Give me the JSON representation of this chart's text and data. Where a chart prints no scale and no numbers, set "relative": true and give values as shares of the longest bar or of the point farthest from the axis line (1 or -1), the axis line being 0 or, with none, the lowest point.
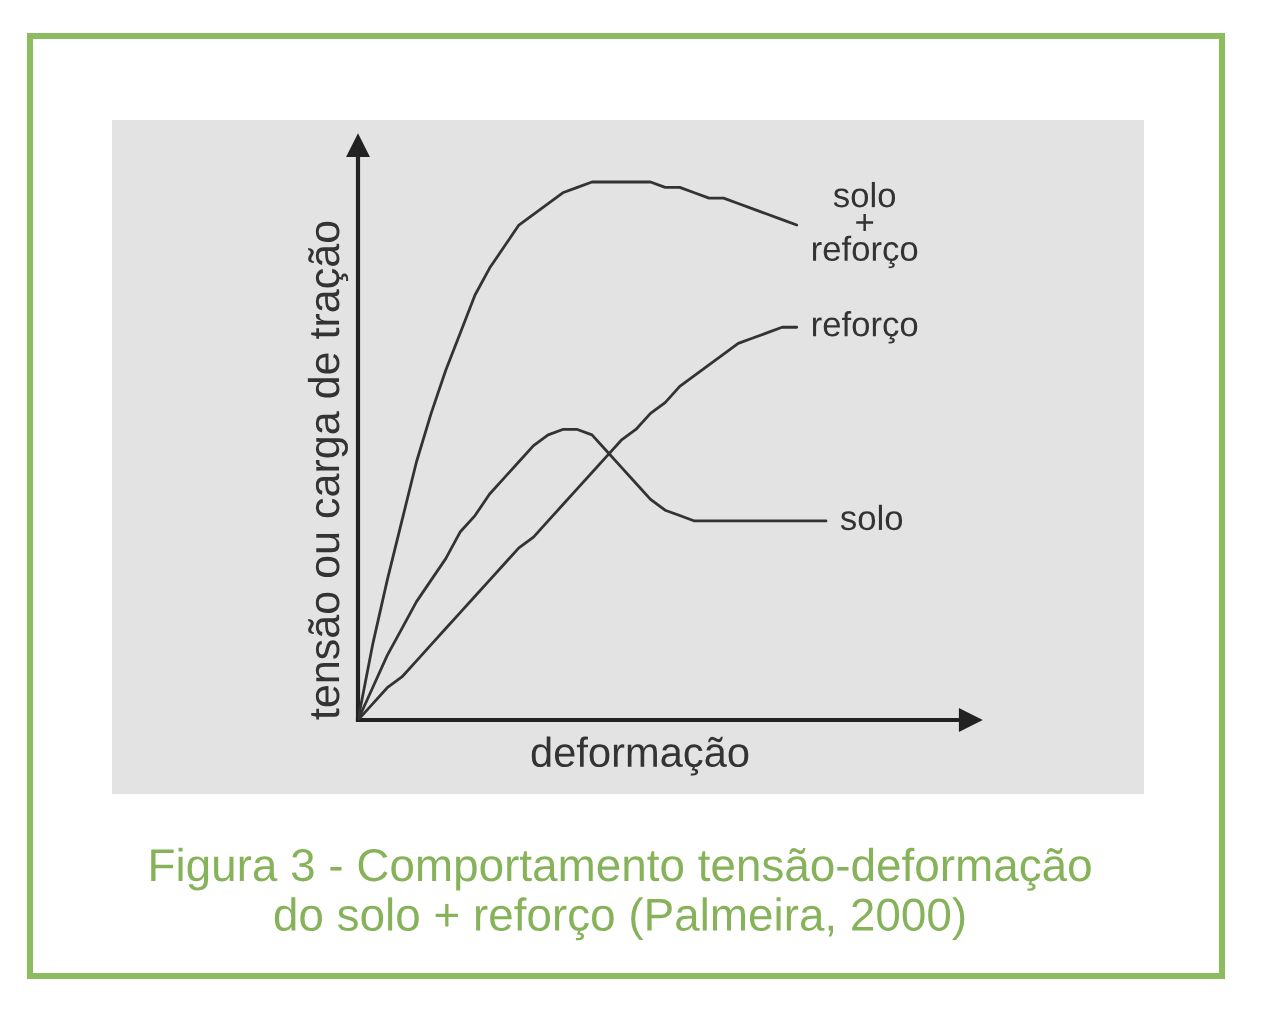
{
  "chart_data": {
    "type": "line",
    "relative": true,
    "xlabel": "deformação",
    "ylabel": "tensão ou carga de tração",
    "categories": [
      null,
      null,
      null,
      null,
      null,
      null,
      null,
      null,
      null,
      null,
      null,
      null,
      null,
      null,
      null,
      null,
      null,
      null,
      null,
      null,
      null,
      null,
      null,
      null,
      null,
      null,
      null,
      null,
      null,
      null,
      null,
      null,
      null
    ],
    "series": [
      {
        "name": "solo + reforço",
        "color": "#333333",
        "values": [
          0,
          0.14,
          0.26,
          0.37,
          0.48,
          0.57,
          0.65,
          0.72,
          0.79,
          0.84,
          0.88,
          0.92,
          0.94,
          0.96,
          0.98,
          0.99,
          1.0,
          1.0,
          1.0,
          1.0,
          1.0,
          0.99,
          0.99,
          0.98,
          0.97,
          0.97,
          0.96,
          0.95,
          0.94,
          0.93,
          0.92,
          null,
          null
        ]
      },
      {
        "name": "reforço",
        "color": "#333333",
        "values": [
          0,
          0.03,
          0.06,
          0.08,
          0.11,
          0.14,
          0.17,
          0.2,
          0.23,
          0.26,
          0.29,
          0.32,
          0.34,
          0.37,
          0.4,
          0.43,
          0.46,
          0.49,
          0.52,
          0.54,
          0.57,
          0.59,
          0.62,
          0.64,
          0.66,
          0.68,
          0.7,
          0.71,
          0.72,
          0.73,
          0.73,
          null,
          null
        ]
      },
      {
        "name": "solo",
        "color": "#333333",
        "values": [
          0,
          0.06,
          0.12,
          0.17,
          0.22,
          0.26,
          0.3,
          0.35,
          0.38,
          0.42,
          0.45,
          0.48,
          0.51,
          0.53,
          0.54,
          0.54,
          0.53,
          0.5,
          0.47,
          0.44,
          0.41,
          0.39,
          0.38,
          0.37,
          0.37,
          0.37,
          0.37,
          0.37,
          0.37,
          0.37,
          0.37,
          0.37,
          0.37
        ]
      }
    ],
    "annotations": [
      "Figura 3 - Comportamento tensão-deformação\ndo solo + reforço (Palmeira, 2000)"
    ]
  }
}
